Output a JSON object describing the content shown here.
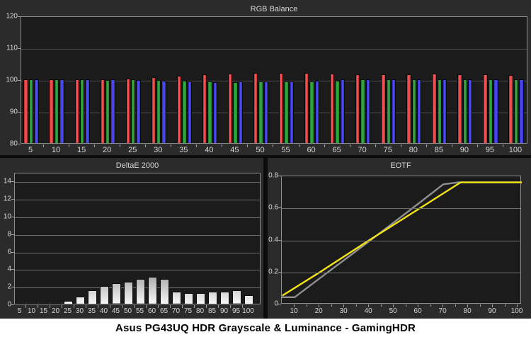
{
  "caption": "Asus PG43UQ HDR Grayscale & Luminance - GamingHDR",
  "colors": {
    "red": "#ef5050",
    "red_edge": "#a92424",
    "green": "#35a341",
    "green_edge": "#1c7a26",
    "blue": "#4a4aee",
    "blue_edge": "#2727b6",
    "yellow_line": "#f2e418",
    "gray_line": "#8f8f8f",
    "panel_bg": "#2b2b2b",
    "plot_bg": "#1b1b1b",
    "text": "#d6d6d6"
  },
  "chart_data": [
    {
      "name": "rgb_balance",
      "type": "bar",
      "title": "RGB Balance",
      "xlabel": "",
      "ylabel": "",
      "categories": [
        5,
        10,
        15,
        20,
        25,
        30,
        35,
        40,
        45,
        50,
        55,
        60,
        65,
        70,
        75,
        80,
        85,
        90,
        95,
        100
      ],
      "series": [
        {
          "name": "Red",
          "color_key": "red",
          "values": [
            100,
            100,
            100,
            100,
            100.3,
            100.7,
            101.2,
            101.5,
            101.8,
            101.9,
            102,
            102.1,
            101.8,
            101.5,
            101.6,
            101.6,
            101.7,
            101.6,
            101.6,
            101.4
          ]
        },
        {
          "name": "Green",
          "color_key": "green",
          "values": [
            100,
            100,
            100,
            99.8,
            100,
            99.7,
            99.5,
            99.3,
            99.2,
            99.3,
            99.4,
            99.3,
            99.6,
            100.1,
            100,
            100.1,
            100,
            100,
            99.9,
            100.1
          ]
        },
        {
          "name": "Blue",
          "color_key": "blue",
          "values": [
            100,
            100,
            100,
            100,
            99.8,
            99.6,
            99.4,
            99.2,
            99.4,
            99.3,
            99.4,
            99.5,
            100,
            99.9,
            99.9,
            100,
            100,
            100,
            99.9,
            100
          ]
        }
      ],
      "ylim": [
        80,
        120
      ],
      "yticks": [
        80,
        90,
        100,
        110,
        120
      ],
      "grid": true,
      "legend": false
    },
    {
      "name": "delta_e_2000",
      "type": "bar",
      "title": "DeltaE 2000",
      "xlabel": "",
      "ylabel": "",
      "categories": [
        5,
        10,
        15,
        20,
        25,
        30,
        35,
        40,
        45,
        50,
        55,
        60,
        65,
        70,
        75,
        80,
        85,
        90,
        95,
        100
      ],
      "values": [
        0.02,
        0.02,
        0.05,
        0.1,
        0.35,
        0.8,
        1.55,
        2.05,
        2.3,
        2.5,
        2.8,
        3.05,
        2.85,
        1.35,
        1.2,
        1.25,
        1.4,
        1.4,
        1.5,
        1.0
      ],
      "ylim": [
        0,
        15
      ],
      "yticks": [
        0,
        2,
        4,
        6,
        8,
        10,
        12,
        14
      ],
      "grid": true,
      "legend": false
    },
    {
      "name": "eotf",
      "type": "line",
      "title": "EOTF",
      "xlabel": "",
      "ylabel": "",
      "xlim": [
        4.8,
        101.7
      ],
      "ylim": [
        0,
        0.8
      ],
      "xticks": [
        10,
        20,
        30,
        40,
        50,
        60,
        70,
        80,
        90,
        100
      ],
      "yticks": [
        0,
        0.2,
        0.4,
        0.6,
        0.8
      ],
      "grid": true,
      "legend": false,
      "series": [
        {
          "name": "reference",
          "color_key": "gray_line",
          "points": [
            [
              4.8,
              0.045
            ],
            [
              10,
              0.045
            ],
            [
              22,
              0.185
            ],
            [
              40,
              0.393
            ],
            [
              60,
              0.63
            ],
            [
              70,
              0.75
            ],
            [
              76,
              0.762
            ],
            [
              101.7,
              0.762
            ]
          ]
        },
        {
          "name": "measured",
          "color_key": "yellow_line",
          "points": [
            [
              5,
              0.055
            ],
            [
              20,
              0.2
            ],
            [
              40,
              0.4
            ],
            [
              60,
              0.595
            ],
            [
              77,
              0.762
            ],
            [
              101.7,
              0.762
            ]
          ]
        }
      ]
    }
  ]
}
